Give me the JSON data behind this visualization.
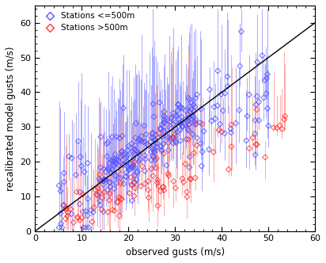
{
  "xlabel": "observed gusts (m/s)",
  "ylabel": "recalibrated model gusts (m/s)",
  "xlim": [
    0,
    60
  ],
  "ylim": [
    0,
    65
  ],
  "xticks": [
    0,
    10,
    20,
    30,
    40,
    50,
    60
  ],
  "yticks": [
    0,
    10,
    20,
    30,
    40,
    50,
    60
  ],
  "legend_labels": [
    "Stations <=500m",
    "Stations >500m"
  ],
  "blue_color": "#5555ff",
  "red_color": "#ff3333",
  "blue_err_color": "#aaaaff",
  "red_err_color": "#ffaaaa",
  "marker_size": 3.5,
  "bg_color": "#ffffff",
  "diag_line": [
    0,
    60
  ]
}
